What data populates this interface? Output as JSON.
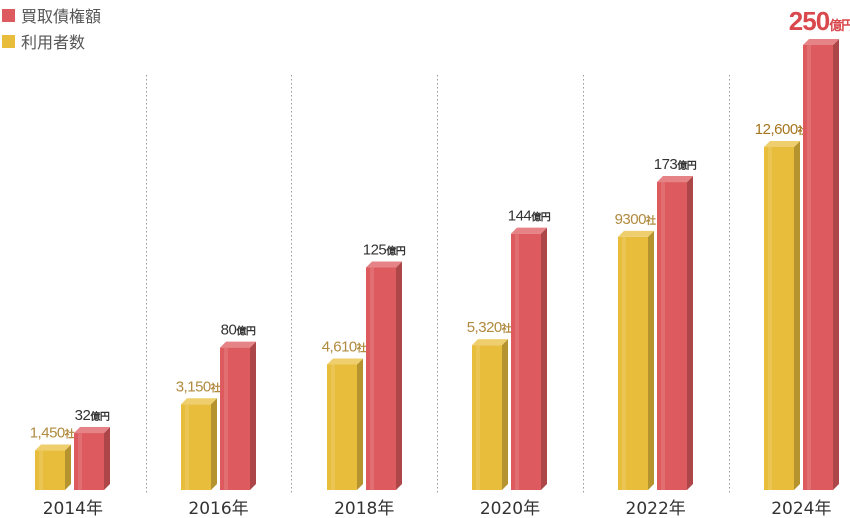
{
  "chart_data": {
    "type": "bar",
    "categories": [
      "2014年",
      "2016年",
      "2018年",
      "2020年",
      "2022年",
      "2024年"
    ],
    "series": [
      {
        "name": "利用者数",
        "values": [
          1450,
          3150,
          4610,
          5320,
          9300,
          12600
        ],
        "labels": [
          "1,450",
          "3,150",
          "4,610",
          "5,320",
          "9300",
          "12,600"
        ],
        "unit": "社",
        "color": "#e8bd3c"
      },
      {
        "name": "買取債権額",
        "values": [
          32,
          80,
          125,
          144,
          173,
          250
        ],
        "labels": [
          "32",
          "80",
          "125",
          "144",
          "173",
          "250"
        ],
        "unit": "億円",
        "color": "#dd5a5e"
      }
    ],
    "legend": [
      "買取債権額",
      "利用者数"
    ],
    "legend_position": "top-left"
  }
}
